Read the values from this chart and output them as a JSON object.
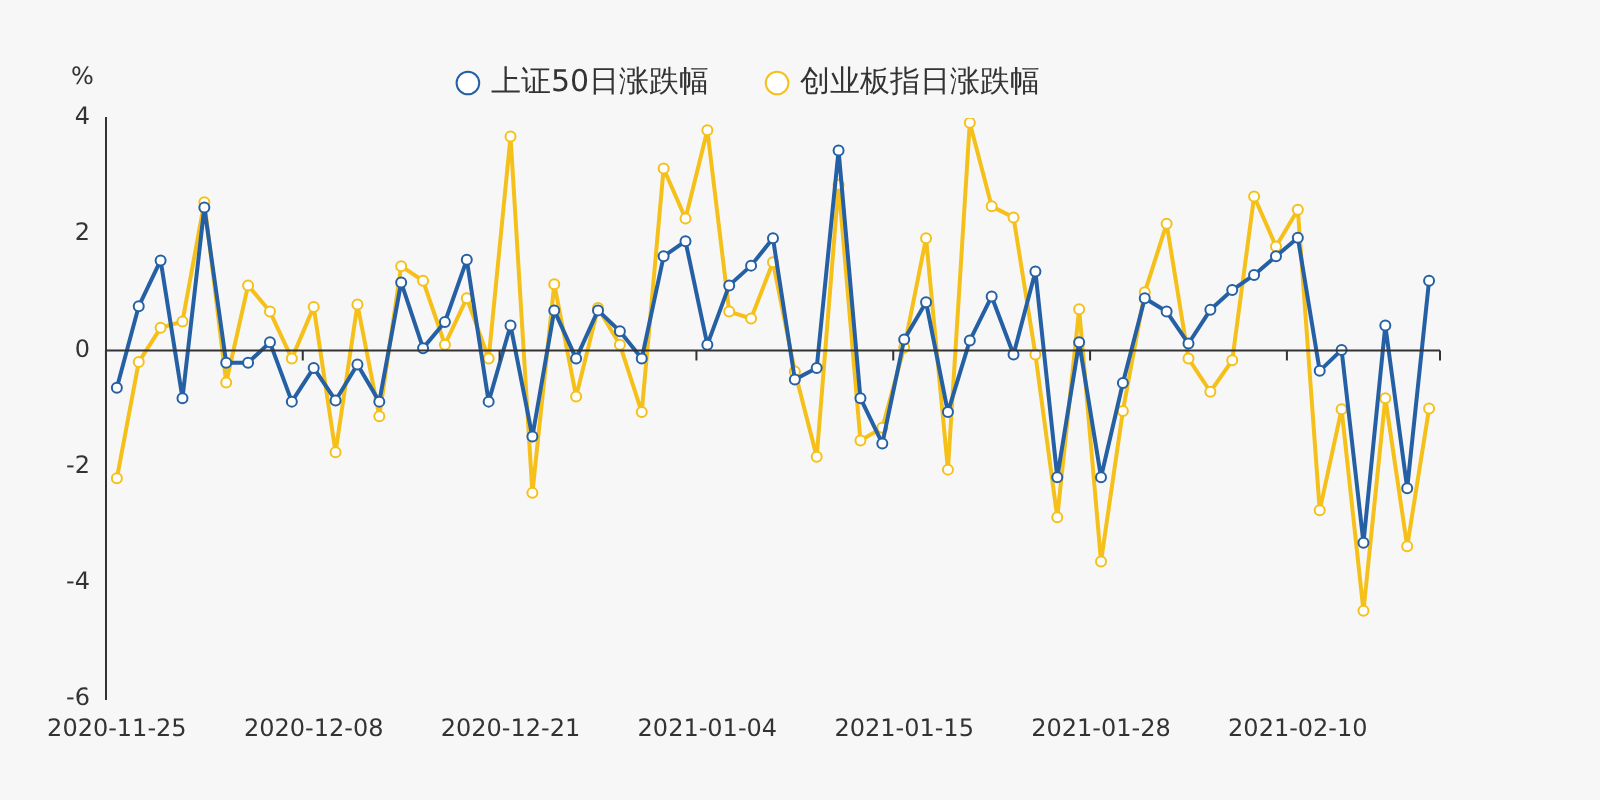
{
  "chart_data": {
    "type": "line",
    "ylabel": "%",
    "legend": "top",
    "marker": "circle",
    "line_style": "solid",
    "ylim": [
      -6,
      4
    ],
    "yticks": [
      -6,
      -4,
      -2,
      0,
      2,
      4
    ],
    "categories": [
      "2020-11-25",
      null,
      null,
      null,
      null,
      null,
      null,
      null,
      null,
      "2020-12-08",
      null,
      null,
      null,
      null,
      null,
      null,
      null,
      null,
      "2020-12-21",
      null,
      null,
      null,
      null,
      null,
      null,
      null,
      null,
      "2021-01-04",
      null,
      null,
      null,
      null,
      null,
      null,
      null,
      null,
      "2021-01-15",
      null,
      null,
      null,
      null,
      null,
      null,
      null,
      null,
      "2021-01-28",
      null,
      null,
      null,
      null,
      null,
      null,
      null,
      null,
      "2021-02-10",
      null,
      null,
      null,
      null,
      null,
      null
    ],
    "series": [
      {
        "name": "上证50日涨跌幅",
        "color": "#2660a4",
        "values": [
          -0.64,
          0.76,
          1.55,
          -0.82,
          2.46,
          -0.21,
          -0.21,
          0.14,
          -0.88,
          -0.3,
          -0.86,
          -0.24,
          -0.88,
          1.17,
          0.04,
          0.49,
          1.56,
          -0.88,
          0.43,
          -1.48,
          0.69,
          -0.14,
          0.69,
          0.33,
          -0.14,
          1.62,
          1.88,
          0.1,
          1.12,
          1.46,
          1.93,
          -0.5,
          -0.3,
          3.44,
          -0.82,
          -1.6,
          0.19,
          0.83,
          -1.06,
          0.17,
          0.93,
          -0.07,
          1.36,
          -2.18,
          0.14,
          -2.18,
          -0.56,
          0.9,
          0.67,
          0.12,
          0.7,
          1.04,
          1.3,
          1.62,
          1.94,
          -0.35,
          0.01,
          -3.31,
          0.43,
          -2.37,
          1.2
        ]
      },
      {
        "name": "创业板指日涨跌幅",
        "color": "#f5c01a",
        "values": [
          -2.2,
          -0.2,
          0.39,
          0.5,
          2.55,
          -0.55,
          1.12,
          0.67,
          -0.14,
          0.75,
          -1.75,
          0.79,
          -1.13,
          1.45,
          1.2,
          0.1,
          0.9,
          -0.14,
          3.68,
          -2.45,
          1.14,
          -0.79,
          0.73,
          0.1,
          -1.06,
          3.13,
          2.27,
          3.79,
          0.67,
          0.55,
          1.52,
          -0.36,
          -1.83,
          2.85,
          -1.55,
          -1.33,
          0.05,
          1.93,
          -2.05,
          3.92,
          2.48,
          2.29,
          -0.07,
          -2.87,
          0.71,
          -3.63,
          -1.04,
          1.0,
          2.18,
          -0.14,
          -0.71,
          -0.17,
          2.65,
          1.79,
          2.42,
          -2.75,
          -1.01,
          -4.48,
          -0.82,
          -3.37,
          -1.0
        ]
      }
    ]
  }
}
